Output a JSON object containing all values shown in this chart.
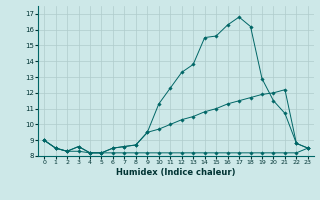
{
  "xlabel": "Humidex (Indice chaleur)",
  "bg_color": "#cde8e8",
  "grid_color": "#b0cccc",
  "line_color": "#006666",
  "x": [
    0,
    1,
    2,
    3,
    4,
    5,
    6,
    7,
    8,
    9,
    10,
    11,
    12,
    13,
    14,
    15,
    16,
    17,
    18,
    19,
    20,
    21,
    22,
    23
  ],
  "line1": [
    9.0,
    8.5,
    8.3,
    8.6,
    8.2,
    8.2,
    8.5,
    8.6,
    8.7,
    9.5,
    11.3,
    12.3,
    13.3,
    13.8,
    15.5,
    15.6,
    16.3,
    16.8,
    16.2,
    12.9,
    11.5,
    10.7,
    8.8,
    8.5
  ],
  "line2": [
    9.0,
    8.5,
    8.3,
    8.6,
    8.2,
    8.2,
    8.5,
    8.6,
    8.7,
    9.5,
    9.7,
    10.0,
    10.3,
    10.5,
    10.8,
    11.0,
    11.3,
    11.5,
    11.7,
    11.9,
    12.0,
    12.2,
    8.8,
    8.5
  ],
  "line3": [
    9.0,
    8.5,
    8.3,
    8.3,
    8.2,
    8.2,
    8.2,
    8.2,
    8.2,
    8.2,
    8.2,
    8.2,
    8.2,
    8.2,
    8.2,
    8.2,
    8.2,
    8.2,
    8.2,
    8.2,
    8.2,
    8.2,
    8.2,
    8.5
  ],
  "ylim": [
    8.0,
    17.5
  ],
  "yticks": [
    8,
    9,
    10,
    11,
    12,
    13,
    14,
    15,
    16,
    17
  ],
  "xticks": [
    0,
    1,
    2,
    3,
    4,
    5,
    6,
    7,
    8,
    9,
    10,
    11,
    12,
    13,
    14,
    15,
    16,
    17,
    18,
    19,
    20,
    21,
    22,
    23
  ],
  "marker": "D",
  "markersize": 1.8,
  "linewidth": 0.7,
  "tick_fontsize": 5,
  "xlabel_fontsize": 6
}
